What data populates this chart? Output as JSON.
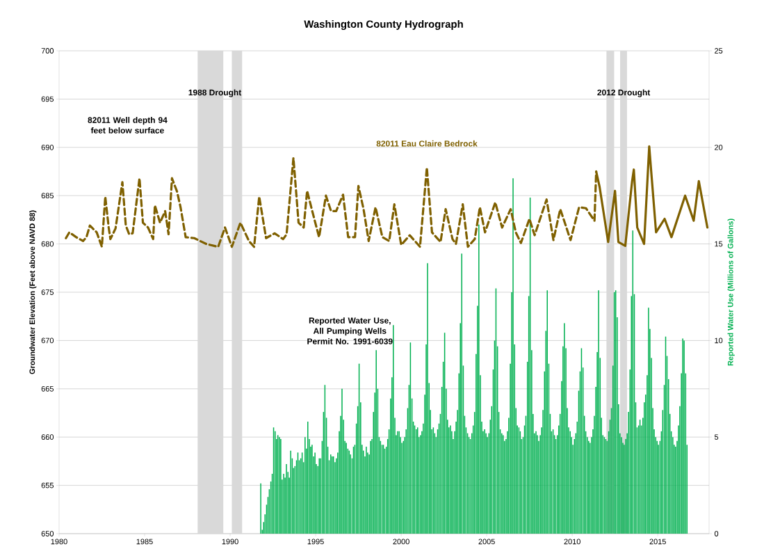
{
  "chart_data": {
    "type": "line",
    "title": "Washington County Hydrograph",
    "ylabel": "Groundwater Elevation (Feet above NAVD 88)",
    "y2label": "Reported Water Use (Millions of Gallons)",
    "xlim": [
      1980,
      2018
    ],
    "xticks": [
      1980,
      1985,
      1990,
      1995,
      2000,
      2005,
      2010,
      2015
    ],
    "ylim": [
      650,
      700
    ],
    "yticks": [
      650,
      655,
      660,
      665,
      670,
      675,
      680,
      685,
      690,
      695,
      700
    ],
    "y2lim": [
      0,
      25
    ],
    "y2ticks": [
      0,
      5,
      10,
      15,
      20,
      25
    ],
    "grid": "y",
    "bands": [
      {
        "axis": "x",
        "from": 1988.1,
        "to": 1989.6,
        "color": "#d9d9d9",
        "label": "1988 Drought"
      },
      {
        "axis": "x",
        "from": 1990.1,
        "to": 1990.7,
        "color": "#d9d9d9"
      },
      {
        "axis": "x",
        "from": 2012.0,
        "to": 2012.45,
        "color": "#d9d9d9",
        "label": "2012 Drought"
      },
      {
        "axis": "x",
        "from": 2012.8,
        "to": 2013.2,
        "color": "#d9d9d9"
      }
    ],
    "annotations": [
      "82011 Well depth 94 feet below surface"
    ],
    "series": [
      {
        "name": "82011 Eau Claire Bedrock",
        "color": "#7f6000",
        "line_style": "dashed",
        "x": [
          1980.4,
          1980.6,
          1981.0,
          1981.4,
          1981.6,
          1981.8,
          1982.2,
          1982.5,
          1982.7,
          1982.9,
          1983.0,
          1983.3,
          1983.7,
          1983.9,
          1984.1,
          1984.3,
          1984.7,
          1984.9,
          1985.2,
          1985.5,
          1985.6,
          1985.9,
          1986.2,
          1986.4,
          1986.6,
          1986.9,
          1987.1,
          1987.4,
          1987.9,
          1988.6,
          1989.3,
          1989.7,
          1990.1,
          1990.6,
          1991.1,
          1991.4,
          1991.7,
          1992.1,
          1992.6,
          1993.1,
          1993.3,
          1993.7,
          1994.0,
          1994.3,
          1994.5,
          1994.8,
          1995.2,
          1995.6,
          1995.9,
          1996.2,
          1996.6,
          1996.9,
          1997.3,
          1997.5,
          1997.8,
          1998.1,
          1998.5,
          1998.9,
          1999.3,
          1999.6,
          2000.0,
          2000.5,
          2001.1,
          2001.5,
          2001.8,
          2002.3,
          2002.6,
          2003.0,
          2003.2,
          2003.6,
          2003.9,
          2004.3,
          2004.6,
          2004.9,
          2005.5,
          2005.9,
          2006.4,
          2006.7,
          2007.0,
          2007.5,
          2007.8,
          2008.5,
          2008.9,
          2009.3,
          2009.9,
          2010.4,
          2010.8,
          2011.3,
          2011.4
        ],
        "values": [
          680.6,
          681.2,
          680.7,
          680.3,
          680.7,
          681.9,
          681.2,
          679.7,
          684.9,
          681.7,
          680.5,
          681.6,
          686.4,
          681.9,
          681.0,
          681.1,
          686.8,
          682.2,
          681.7,
          680.5,
          684.0,
          682.2,
          683.4,
          681.0,
          686.8,
          685.4,
          683.8,
          680.7,
          680.6,
          680.0,
          679.7,
          681.7,
          679.7,
          682.2,
          680.3,
          679.7,
          684.9,
          680.6,
          681.1,
          680.5,
          681.0,
          688.9,
          682.2,
          681.7,
          685.5,
          683.4,
          680.7,
          685.0,
          683.4,
          683.4,
          685.1,
          680.7,
          680.7,
          686.0,
          683.6,
          680.3,
          683.8,
          680.7,
          680.3,
          684.1,
          679.9,
          680.9,
          679.7,
          687.9,
          681.2,
          680.2,
          683.6,
          680.5,
          680.0,
          684.1,
          679.7,
          680.5,
          683.8,
          681.2,
          684.3,
          681.7,
          683.6,
          681.2,
          680.1,
          682.6,
          680.9,
          684.6,
          680.4,
          683.6,
          680.4,
          683.8,
          683.7,
          682.4,
          687.5
        ]
      },
      {
        "color": "#7f6000",
        "line_style": "solid",
        "x": [
          2011.4,
          2011.6,
          2012.1,
          2012.5,
          2012.7,
          2013.1,
          2013.5,
          2013.6,
          2013.8,
          2014.2,
          2014.5,
          2014.9,
          2015.4,
          2015.8,
          2016.6,
          2017.1,
          2017.4,
          2017.9
        ],
        "values": [
          687.5,
          685.9,
          680.2,
          685.5,
          680.2,
          679.8,
          686.5,
          687.7,
          681.7,
          680.0,
          690.1,
          681.2,
          682.6,
          680.7,
          685.0,
          682.4,
          686.5,
          681.7
        ]
      },
      {
        "type": "bar",
        "axis": "y2",
        "name": "Reported Water Use, All Pumping Wells Permit No. 1991-6039",
        "color": "#00b050",
        "x": [
          1991.79,
          1991.88,
          1991.96,
          1992.04,
          1992.13,
          1992.21,
          1992.29,
          1992.38,
          1992.46,
          1992.54,
          1992.63,
          1992.71,
          1992.79,
          1992.88,
          1992.96,
          1993.04,
          1993.13,
          1993.21,
          1993.29,
          1993.38,
          1993.46,
          1993.54,
          1993.63,
          1993.71,
          1993.79,
          1993.88,
          1993.96,
          1994.04,
          1994.13,
          1994.21,
          1994.29,
          1994.38,
          1994.46,
          1994.54,
          1994.63,
          1994.71,
          1994.79,
          1994.88,
          1994.96,
          1995.04,
          1995.13,
          1995.21,
          1995.29,
          1995.38,
          1995.46,
          1995.54,
          1995.63,
          1995.71,
          1995.79,
          1995.88,
          1995.96,
          1996.04,
          1996.13,
          1996.21,
          1996.29,
          1996.38,
          1996.46,
          1996.54,
          1996.63,
          1996.71,
          1996.79,
          1996.88,
          1996.96,
          1997.04,
          1997.13,
          1997.21,
          1997.29,
          1997.38,
          1997.46,
          1997.54,
          1997.63,
          1997.71,
          1997.79,
          1997.88,
          1997.96,
          1998.04,
          1998.13,
          1998.21,
          1998.29,
          1998.38,
          1998.46,
          1998.54,
          1998.63,
          1998.71,
          1998.79,
          1998.88,
          1998.96,
          1999.04,
          1999.13,
          1999.21,
          1999.29,
          1999.38,
          1999.46,
          1999.54,
          1999.63,
          1999.71,
          1999.79,
          1999.88,
          1999.96,
          2000.04,
          2000.13,
          2000.21,
          2000.29,
          2000.38,
          2000.46,
          2000.54,
          2000.63,
          2000.71,
          2000.79,
          2000.88,
          2000.96,
          2001.04,
          2001.13,
          2001.21,
          2001.29,
          2001.38,
          2001.46,
          2001.54,
          2001.63,
          2001.71,
          2001.79,
          2001.88,
          2001.96,
          2002.04,
          2002.13,
          2002.21,
          2002.29,
          2002.38,
          2002.46,
          2002.54,
          2002.63,
          2002.71,
          2002.79,
          2002.88,
          2002.96,
          2003.04,
          2003.13,
          2003.21,
          2003.29,
          2003.38,
          2003.46,
          2003.54,
          2003.63,
          2003.71,
          2003.79,
          2003.88,
          2003.96,
          2004.04,
          2004.13,
          2004.21,
          2004.29,
          2004.38,
          2004.46,
          2004.54,
          2004.63,
          2004.71,
          2004.79,
          2004.88,
          2004.96,
          2005.04,
          2005.13,
          2005.21,
          2005.29,
          2005.38,
          2005.46,
          2005.54,
          2005.63,
          2005.71,
          2005.79,
          2005.88,
          2005.96,
          2006.04,
          2006.13,
          2006.21,
          2006.29,
          2006.38,
          2006.46,
          2006.54,
          2006.63,
          2006.71,
          2006.79,
          2006.88,
          2006.96,
          2007.04,
          2007.13,
          2007.21,
          2007.29,
          2007.38,
          2007.46,
          2007.54,
          2007.63,
          2007.71,
          2007.79,
          2007.88,
          2007.96,
          2008.04,
          2008.13,
          2008.21,
          2008.29,
          2008.38,
          2008.46,
          2008.54,
          2008.63,
          2008.71,
          2008.79,
          2008.88,
          2008.96,
          2009.04,
          2009.13,
          2009.21,
          2009.29,
          2009.38,
          2009.46,
          2009.54,
          2009.63,
          2009.71,
          2009.79,
          2009.88,
          2009.96,
          2010.04,
          2010.13,
          2010.21,
          2010.29,
          2010.38,
          2010.46,
          2010.54,
          2010.63,
          2010.71,
          2010.79,
          2010.88,
          2010.96,
          2011.04,
          2011.13,
          2011.21,
          2011.29,
          2011.38,
          2011.46,
          2011.54,
          2011.63,
          2011.71,
          2011.79,
          2011.88,
          2011.96,
          2012.04,
          2012.13,
          2012.21,
          2012.29,
          2012.38,
          2012.46,
          2012.54,
          2012.63,
          2012.71,
          2012.79,
          2012.88,
          2012.96,
          2013.04,
          2013.13,
          2013.21,
          2013.29,
          2013.38,
          2013.46,
          2013.54,
          2013.63,
          2013.71,
          2013.79,
          2013.88,
          2013.96,
          2014.04,
          2014.13,
          2014.21,
          2014.29,
          2014.38,
          2014.46,
          2014.54,
          2014.63,
          2014.71,
          2014.79,
          2014.88,
          2014.96,
          2015.04,
          2015.13,
          2015.21,
          2015.29,
          2015.38,
          2015.46,
          2015.54,
          2015.63,
          2015.71,
          2015.79,
          2015.88,
          2015.96,
          2016.04,
          2016.13,
          2016.21,
          2016.29,
          2016.38,
          2016.46,
          2016.54,
          2016.63,
          2016.71
        ],
        "values": [
          2.6,
          0.2,
          0.6,
          1.0,
          1.5,
          1.9,
          2.3,
          2.7,
          3.1,
          5.5,
          5.3,
          4.9,
          5.1,
          5.0,
          4.9,
          2.8,
          3.1,
          2.9,
          3.6,
          3.2,
          2.9,
          4.3,
          3.9,
          3.4,
          3.5,
          3.8,
          4.2,
          3.8,
          3.9,
          4.2,
          3.7,
          5.0,
          4.4,
          5.8,
          4.9,
          4.5,
          4.6,
          4.0,
          4.2,
          3.6,
          3.5,
          3.9,
          3.9,
          4.8,
          6.3,
          7.7,
          6.0,
          4.5,
          3.8,
          4.1,
          4.0,
          4.0,
          3.7,
          3.9,
          4.2,
          5.3,
          6.1,
          7.5,
          5.9,
          4.8,
          4.7,
          4.4,
          4.3,
          4.1,
          3.9,
          4.5,
          4.6,
          5.7,
          6.6,
          8.8,
          6.8,
          4.6,
          4.3,
          4.0,
          4.5,
          4.2,
          4.1,
          4.8,
          4.9,
          6.3,
          7.3,
          9.5,
          7.5,
          5.0,
          4.8,
          4.6,
          4.6,
          4.4,
          4.5,
          4.9,
          5.4,
          7.0,
          8.1,
          10.8,
          6.0,
          5.1,
          5.3,
          5.3,
          5.0,
          4.7,
          4.8,
          5.0,
          5.4,
          6.5,
          7.7,
          9.9,
          7.0,
          5.8,
          5.6,
          5.4,
          5.5,
          5.0,
          5.1,
          5.3,
          5.7,
          7.2,
          9.8,
          14.0,
          7.8,
          6.4,
          5.4,
          5.5,
          5.2,
          5.0,
          5.4,
          5.7,
          6.2,
          7.6,
          8.9,
          10.4,
          7.5,
          5.9,
          5.5,
          5.6,
          5.3,
          4.9,
          5.3,
          5.8,
          6.4,
          8.3,
          10.9,
          14.5,
          8.7,
          6.1,
          5.5,
          5.2,
          5.0,
          4.9,
          5.2,
          5.6,
          6.3,
          9.3,
          11.8,
          16.0,
          8.2,
          5.8,
          5.3,
          5.4,
          5.2,
          5.0,
          5.2,
          5.9,
          6.6,
          8.5,
          10.0,
          12.7,
          9.7,
          6.3,
          5.4,
          5.2,
          5.1,
          4.8,
          4.9,
          5.3,
          6.0,
          8.8,
          12.5,
          18.4,
          9.8,
          6.5,
          5.6,
          5.5,
          5.3,
          4.9,
          5.0,
          5.6,
          6.1,
          8.9,
          12.3,
          17.4,
          9.5,
          6.2,
          5.2,
          5.3,
          5.1,
          4.8,
          5.1,
          5.5,
          6.4,
          8.4,
          10.5,
          12.6,
          8.8,
          6.2,
          5.3,
          5.4,
          5.1,
          4.9,
          5.1,
          5.6,
          6.2,
          7.9,
          9.7,
          10.9,
          9.6,
          6.5,
          5.5,
          5.3,
          5.0,
          4.6,
          4.9,
          5.2,
          5.8,
          7.4,
          8.4,
          9.6,
          8.6,
          6.1,
          5.3,
          5.0,
          4.8,
          4.7,
          5.0,
          5.4,
          6.1,
          7.6,
          9.4,
          12.6,
          9.1,
          6.0,
          5.1,
          5.0,
          4.9,
          4.8,
          5.3,
          5.9,
          6.5,
          8.7,
          12.5,
          12.6,
          11.2,
          6.7,
          5.2,
          5.0,
          4.7,
          4.6,
          4.9,
          5.2,
          6.3,
          8.5,
          12.3,
          15.7,
          12.4,
          6.8,
          5.5,
          5.6,
          5.9,
          5.6,
          6.0,
          6.8,
          7.2,
          8.2,
          11.7,
          10.6,
          9.1,
          6.5,
          5.4,
          5.0,
          4.8,
          4.6,
          4.8,
          5.3,
          6.4,
          7.7,
          10.2,
          9.2,
          8.0,
          6.2,
          5.3,
          5.0,
          4.6,
          4.5,
          4.8,
          5.6,
          6.6,
          8.3,
          10.1,
          10.0,
          8.3,
          4.6
        ]
      }
    ]
  }
}
